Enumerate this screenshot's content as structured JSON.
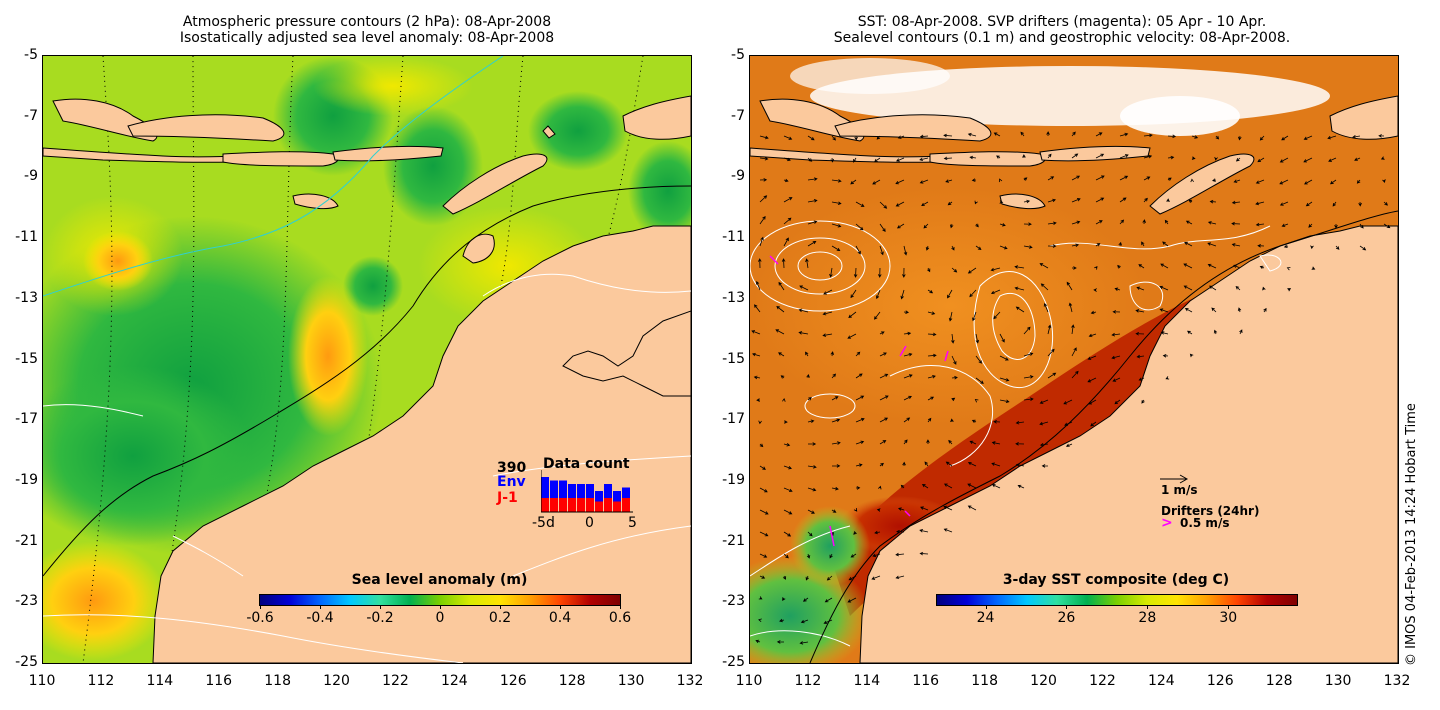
{
  "left_panel": {
    "title_line1": "Atmospheric pressure contours (2 hPa): 08-Apr-2008",
    "title_line2": "Isostatically adjusted sea level anomaly: 08-Apr-2008",
    "colorbar_title": "Sea level anomaly (m)",
    "colorbar_ticks": [
      "-0.6",
      "-0.4",
      "-0.2",
      "0",
      "0.2",
      "0.4",
      "0.6"
    ],
    "colorbar_range": [
      -0.6,
      0.6
    ],
    "inset": {
      "title": "Data count",
      "count": "390",
      "series": [
        "Env",
        "J-1"
      ],
      "x_ticks": [
        "-5d",
        "0",
        "5"
      ],
      "env_values": [
        10,
        9,
        9,
        8,
        8,
        8,
        6,
        8,
        6,
        7
      ],
      "j1_values": [
        4,
        4,
        4,
        4,
        4,
        4,
        3,
        4,
        3,
        4
      ]
    }
  },
  "right_panel": {
    "title_line1": "SST: 08-Apr-2008. SVP drifters (magenta): 05 Apr - 10 Apr.",
    "title_line2": "Sealevel contours (0.1 m) and geostrophic velocity: 08-Apr-2008.",
    "colorbar_title": "3-day SST composite (deg C)",
    "colorbar_ticks": [
      "24",
      "26",
      "28",
      "30"
    ],
    "colorbar_range": [
      22.8,
      31.7
    ],
    "velocity_label": "1 m/s",
    "drifters_label": "Drifters (24hr)",
    "drifter_speed_label": "0.5 m/s",
    "drifter_symbol": ">"
  },
  "axes": {
    "x_ticks": [
      "110",
      "112",
      "114",
      "116",
      "118",
      "120",
      "122",
      "124",
      "126",
      "128",
      "130",
      "132"
    ],
    "y_ticks": [
      "-5",
      "-7",
      "-9",
      "-11",
      "-13",
      "-15",
      "-17",
      "-19",
      "-21",
      "-23",
      "-25"
    ],
    "lon_range": [
      110,
      132
    ],
    "lat_range": [
      -25,
      -5
    ]
  },
  "credit": "© IMOS 04-Feb-2013 14:24 Hobart Time",
  "colors": {
    "land": "#fbc99d",
    "slot_cmap": [
      "#00007f",
      "#0000d8",
      "#0066ff",
      "#00c8ff",
      "#30e0a0",
      "#00b050",
      "#7ad000",
      "#d8ea00",
      "#ffe400",
      "#ffa000",
      "#ff4500",
      "#b20000",
      "#7f0000"
    ],
    "env_bar": "#0000ff",
    "j1_bar": "#ff0000",
    "drifter": "#ff00ff"
  }
}
